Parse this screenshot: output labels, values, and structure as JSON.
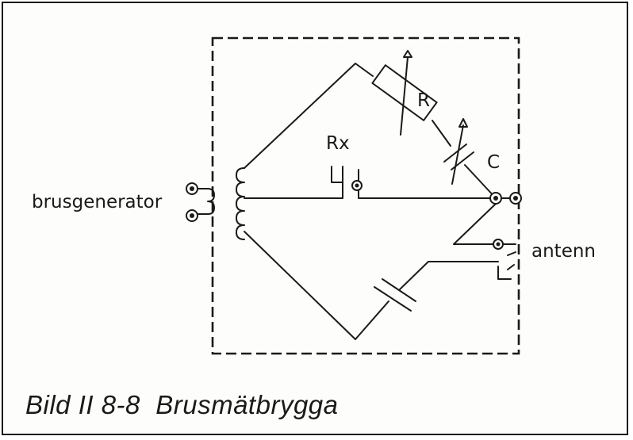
{
  "labels": {
    "generator": "brusgenerator",
    "rx": "Rx",
    "r": "R",
    "c": "C",
    "antenna": "antenn"
  },
  "caption": "Bild II 8-8  Brusmätbrygga"
}
